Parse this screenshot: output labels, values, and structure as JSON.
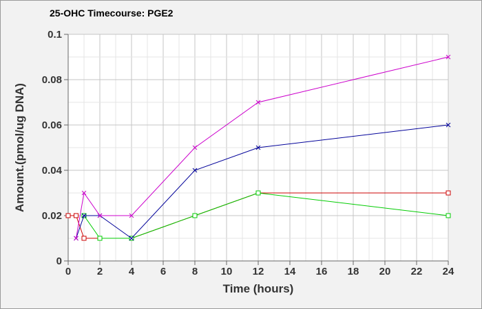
{
  "chart_data": {
    "type": "line",
    "title": "25-OHC Timecourse: PGE2",
    "xlabel": "Time (hours)",
    "ylabel": "Amount.(pmol/ug DNA)",
    "xlim": [
      0,
      24
    ],
    "ylim": [
      0,
      0.1
    ],
    "x_ticks": [
      "0",
      "2",
      "4",
      "6",
      "8",
      "10",
      "12",
      "14",
      "16",
      "18",
      "20",
      "22",
      "24"
    ],
    "y_ticks": [
      "0",
      "0.02",
      "0.04",
      "0.06",
      "0.08",
      "0.1"
    ],
    "grid": true,
    "legend": "none",
    "series": [
      {
        "color": "#cc0000",
        "marker": "square",
        "points": [
          [
            0,
            0.02
          ],
          [
            0.5,
            0.02
          ],
          [
            1,
            0.01
          ],
          [
            4,
            0.01
          ],
          [
            8,
            0.02
          ],
          [
            12,
            0.03
          ],
          [
            24,
            0.03
          ]
        ]
      },
      {
        "color": "#00cc00",
        "marker": "square",
        "points": [
          [
            1,
            0.02
          ],
          [
            2,
            0.01
          ],
          [
            4,
            0.01
          ],
          [
            8,
            0.02
          ],
          [
            12,
            0.03
          ],
          [
            24,
            0.02
          ]
        ]
      },
      {
        "color": "#000099",
        "marker": "x",
        "points": [
          [
            0.5,
            0.01
          ],
          [
            1,
            0.02
          ],
          [
            2,
            0.02
          ],
          [
            4,
            0.01
          ],
          [
            8,
            0.04
          ],
          [
            12,
            0.05
          ],
          [
            24,
            0.06
          ]
        ]
      },
      {
        "color": "#cc00cc",
        "marker": "x",
        "points": [
          [
            0.5,
            0.01
          ],
          [
            1,
            0.03
          ],
          [
            2,
            0.02
          ],
          [
            4,
            0.02
          ],
          [
            8,
            0.05
          ],
          [
            12,
            0.07
          ],
          [
            24,
            0.09
          ]
        ]
      }
    ]
  }
}
